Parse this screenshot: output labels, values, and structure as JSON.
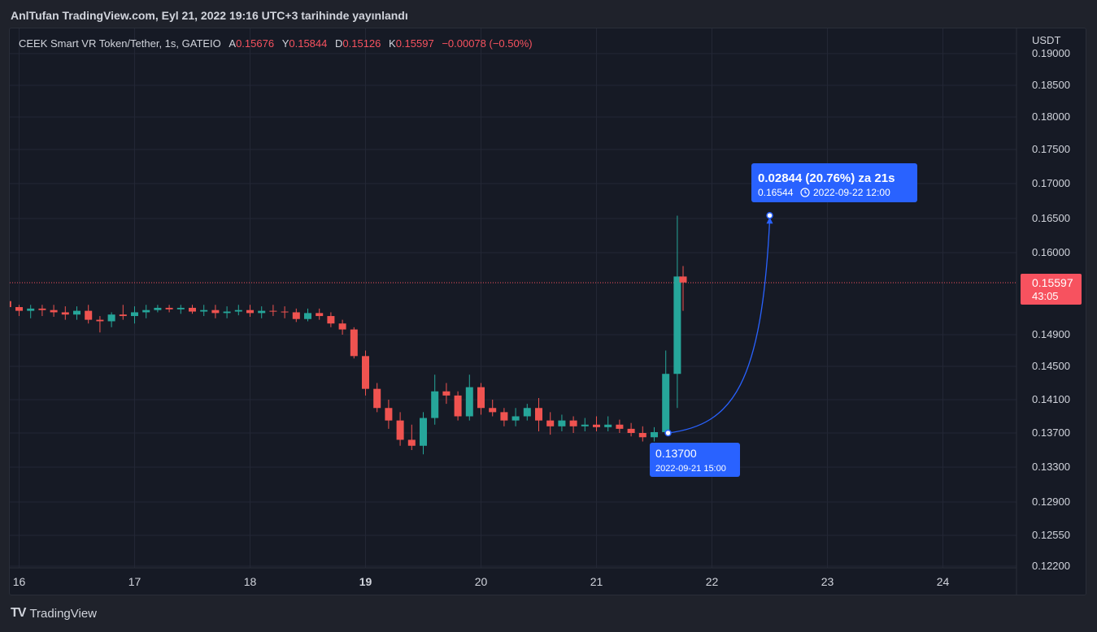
{
  "header": {
    "title": "AnlTufan TradingView.com, Eyl 21, 2022 19:16 UTC+3 tarihinde yayınlandı"
  },
  "legend": {
    "symbol": "CEEK Smart VR Token/Tether, 1s, GATEIO",
    "a_label": "A",
    "a_value": "0.15676",
    "y_label": "Y",
    "y_value": "0.15844",
    "d_label": "D",
    "d_value": "0.15126",
    "k_label": "K",
    "k_value": "0.15597",
    "change": "−0.00078 (−0.50%)"
  },
  "price_axis": {
    "currency": "USDT",
    "ticks": [
      "0.19000",
      "0.18500",
      "0.18000",
      "0.17500",
      "0.17000",
      "0.16500",
      "0.16000",
      "0.14900",
      "0.14500",
      "0.14100",
      "0.13700",
      "0.13300",
      "0.12900",
      "0.12550",
      "0.12200"
    ],
    "current_price": "0.15597",
    "countdown": "43:05"
  },
  "time_axis": {
    "ticks": [
      "16",
      "17",
      "18",
      "19",
      "20",
      "21",
      "22",
      "23",
      "24"
    ]
  },
  "annotation": {
    "target_line1": "0.02844 (20.76%) za 21s",
    "target_price": "0.16544",
    "target_time": "2022-09-22  12:00",
    "start_price": "0.13700",
    "start_time": "2022-09-21 15:00"
  },
  "colors": {
    "up": "#26a69a",
    "down": "#ef5350",
    "accent": "#2962ff",
    "price_tag": "#f7525f"
  },
  "footer": {
    "brand": "TradingView"
  },
  "chart_data": {
    "type": "candlestick",
    "title": "CEEK Smart VR Token/Tether, 1s, GATEIO",
    "x_unit": "day (Sep 2022)",
    "ylabel": "USDT",
    "ylim": [
      0.122,
      0.19
    ],
    "x": [
      15.9,
      16.0,
      16.1,
      16.2,
      16.3,
      16.4,
      16.5,
      16.6,
      16.7,
      16.8,
      16.9,
      17.0,
      17.1,
      17.2,
      17.3,
      17.4,
      17.5,
      17.6,
      17.7,
      17.8,
      17.9,
      18.0,
      18.1,
      18.2,
      18.3,
      18.4,
      18.5,
      18.6,
      18.7,
      18.8,
      18.9,
      19.0,
      19.1,
      19.2,
      19.3,
      19.4,
      19.5,
      19.6,
      19.7,
      19.8,
      19.9,
      20.0,
      20.1,
      20.2,
      20.3,
      20.4,
      20.5,
      20.6,
      20.7,
      20.8,
      20.9,
      21.0,
      21.1,
      21.2,
      21.3,
      21.4,
      21.5,
      21.6,
      21.7,
      21.75
    ],
    "open": [
      0.1535,
      0.1527,
      0.1522,
      0.1525,
      0.1523,
      0.152,
      0.1517,
      0.1522,
      0.151,
      0.1508,
      0.1517,
      0.1515,
      0.152,
      0.1523,
      0.1526,
      0.1524,
      0.1526,
      0.1521,
      0.1523,
      0.1519,
      0.1521,
      0.1523,
      0.1519,
      0.1522,
      0.1521,
      0.152,
      0.1511,
      0.1519,
      0.1515,
      0.1505,
      0.1497,
      0.1463,
      0.1423,
      0.14,
      0.1385,
      0.1362,
      0.1355,
      0.1388,
      0.142,
      0.1415,
      0.139,
      0.1425,
      0.14,
      0.1395,
      0.1385,
      0.139,
      0.14,
      0.1385,
      0.1378,
      0.1385,
      0.1378,
      0.138,
      0.1377,
      0.138,
      0.1375,
      0.137,
      0.1365,
      0.1371,
      0.1441,
      0.1568
    ],
    "close": [
      0.1527,
      0.1522,
      0.1525,
      0.1523,
      0.152,
      0.1517,
      0.1522,
      0.151,
      0.1508,
      0.1517,
      0.1515,
      0.152,
      0.1523,
      0.1526,
      0.1524,
      0.1526,
      0.1521,
      0.1523,
      0.1519,
      0.1521,
      0.1523,
      0.1519,
      0.1522,
      0.1521,
      0.152,
      0.1511,
      0.1519,
      0.1515,
      0.1505,
      0.1497,
      0.1463,
      0.1423,
      0.14,
      0.1385,
      0.1362,
      0.1355,
      0.1388,
      0.142,
      0.1415,
      0.139,
      0.1425,
      0.14,
      0.1395,
      0.1385,
      0.139,
      0.14,
      0.1385,
      0.1378,
      0.1385,
      0.1378,
      0.138,
      0.1377,
      0.138,
      0.1375,
      0.137,
      0.1365,
      0.1371,
      0.1441,
      0.1568,
      0.156
    ],
    "high": [
      0.1538,
      0.153,
      0.153,
      0.153,
      0.153,
      0.1528,
      0.1528,
      0.153,
      0.1515,
      0.152,
      0.153,
      0.1528,
      0.153,
      0.153,
      0.153,
      0.153,
      0.153,
      0.153,
      0.153,
      0.1528,
      0.153,
      0.153,
      0.1528,
      0.153,
      0.1528,
      0.1525,
      0.1525,
      0.1525,
      0.152,
      0.151,
      0.15,
      0.147,
      0.143,
      0.141,
      0.1395,
      0.138,
      0.1395,
      0.144,
      0.143,
      0.142,
      0.144,
      0.143,
      0.141,
      0.14,
      0.14,
      0.1405,
      0.1412,
      0.1395,
      0.1392,
      0.139,
      0.1388,
      0.139,
      0.139,
      0.1386,
      0.1382,
      0.1378,
      0.1377,
      0.147,
      0.1654,
      0.1582
    ],
    "low": [
      0.1522,
      0.1515,
      0.1512,
      0.1515,
      0.1514,
      0.151,
      0.151,
      0.1505,
      0.1493,
      0.15,
      0.151,
      0.1505,
      0.1512,
      0.152,
      0.152,
      0.1518,
      0.1518,
      0.1515,
      0.1512,
      0.1512,
      0.1516,
      0.1514,
      0.1512,
      0.1515,
      0.1512,
      0.1507,
      0.1508,
      0.151,
      0.15,
      0.149,
      0.146,
      0.1415,
      0.1395,
      0.1375,
      0.1355,
      0.135,
      0.1345,
      0.138,
      0.1405,
      0.1385,
      0.1385,
      0.1392,
      0.139,
      0.1378,
      0.1378,
      0.1385,
      0.1372,
      0.1368,
      0.1372,
      0.137,
      0.1372,
      0.1372,
      0.1372,
      0.137,
      0.1366,
      0.136,
      0.136,
      0.1369,
      0.14,
      0.1522
    ],
    "current_price": 0.15597,
    "annotation": {
      "from": {
        "day": 21.62,
        "price": 0.137
      },
      "to": {
        "day": 22.5,
        "price": 0.16544
      },
      "change": 0.02844,
      "change_pct": 20.76
    }
  }
}
